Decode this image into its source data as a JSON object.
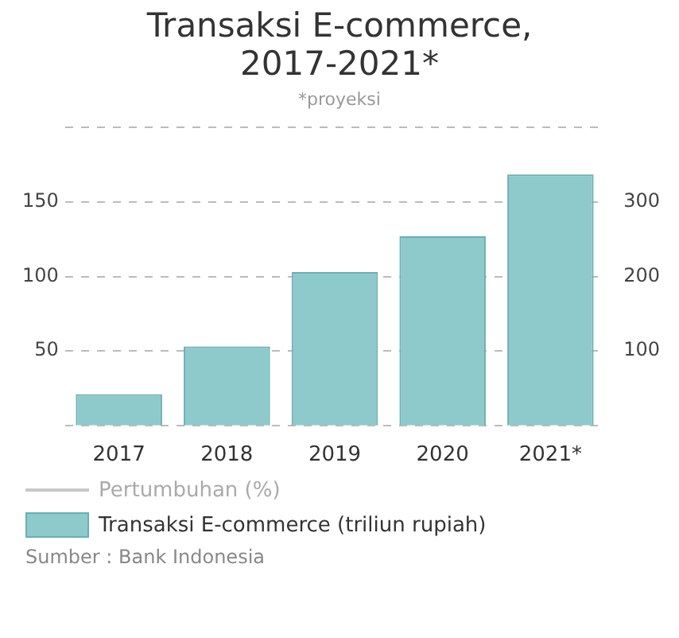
{
  "chart_data": {
    "type": "bar",
    "title": "Transaksi E-commerce, 2017-2021*",
    "subtitle": "*proyeksi",
    "categories": [
      "2017",
      "2018",
      "2019",
      "2020",
      "2021*"
    ],
    "series": [
      {
        "name": "Pertumbuhan (%)",
        "type": "line",
        "color": "#c8c8c8",
        "values": [
          null,
          null,
          null,
          null,
          null
        ]
      },
      {
        "name": "Transaksi E-commerce (triliun rupiah)",
        "color": "#8ec9cb",
        "axis": "y2",
        "values": [
          42,
          106,
          206,
          254,
          337
        ]
      }
    ],
    "ylim": [
      0,
      200
    ],
    "yticks": [
      {
        "value": 0,
        "label": null
      },
      50,
      100,
      150,
      {
        "value": 200,
        "label": null
      }
    ],
    "y2lim": [
      0,
      400
    ],
    "y2ticks": [
      100,
      200,
      300
    ],
    "grid": "y",
    "legend": "bottom",
    "annotations": [
      "Sumber : Bank Indonesia"
    ]
  }
}
